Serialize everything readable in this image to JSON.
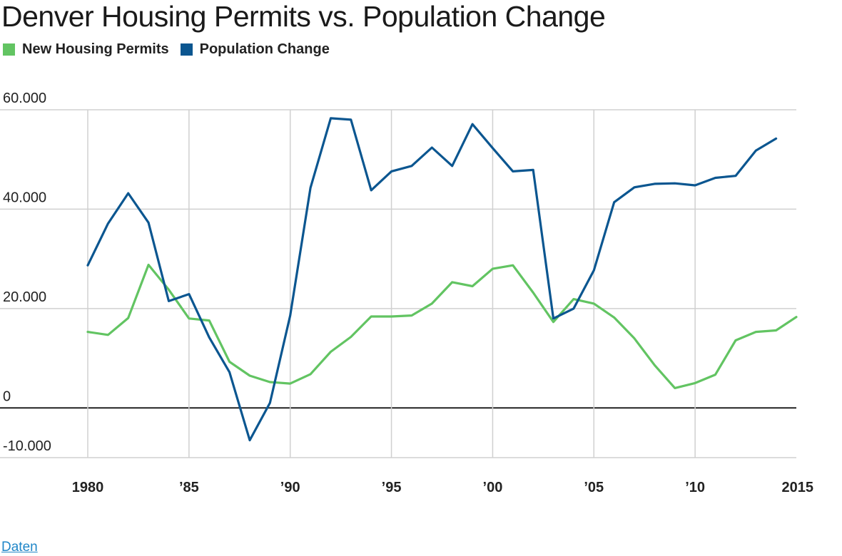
{
  "chart_data": {
    "type": "line",
    "title": "Denver Housing Permits vs. Population Change",
    "xlabel": "",
    "ylabel": "",
    "x": [
      1980,
      1981,
      1982,
      1983,
      1984,
      1985,
      1986,
      1987,
      1988,
      1989,
      1990,
      1991,
      1992,
      1993,
      1994,
      1995,
      1996,
      1997,
      1998,
      1999,
      2000,
      2001,
      2002,
      2003,
      2004,
      2005,
      2006,
      2007,
      2008,
      2009,
      2010,
      2011,
      2012,
      2013,
      2014,
      2015
    ],
    "series": [
      {
        "name": "New Housing Permits",
        "color": "#62c462",
        "values": [
          15300,
          14700,
          18100,
          28800,
          23800,
          18000,
          17600,
          9300,
          6500,
          5200,
          4900,
          6800,
          11300,
          14300,
          18400,
          18400,
          18600,
          21000,
          25300,
          24500,
          28000,
          28700,
          23200,
          17300,
          21900,
          21000,
          18200,
          14000,
          8600,
          4000,
          5000,
          6700,
          13600,
          15300,
          15600,
          18300
        ]
      },
      {
        "name": "Population Change",
        "color": "#0b5690",
        "values": [
          28700,
          37100,
          43200,
          37300,
          21500,
          22900,
          14200,
          7200,
          -6500,
          1000,
          18600,
          44300,
          58300,
          58000,
          43800,
          47600,
          48700,
          52400,
          48700,
          57100,
          52300,
          47600,
          47900,
          18000,
          20000,
          27700,
          41400,
          44400,
          45100,
          45200,
          44800,
          46300,
          46700,
          51800,
          54200,
          null
        ]
      }
    ],
    "ylim": [
      -10000,
      60000
    ],
    "yticks": [
      -10000,
      0,
      20000,
      40000,
      60000
    ],
    "ytick_labels": [
      "-10.000",
      "0",
      "20.000",
      "40.000",
      "60.000"
    ],
    "xticks": [
      1980,
      1985,
      1990,
      1995,
      2000,
      2005,
      2010,
      2015
    ],
    "xtick_labels": [
      "1980",
      "’85",
      "’90",
      "’95",
      "’00",
      "’05",
      "’10",
      "2015"
    ],
    "grid": true,
    "legend_position": "top-left"
  },
  "footer": {
    "source_link": "Daten"
  },
  "colors": {
    "grid": "#d0d0d0",
    "zero_line": "#222222",
    "text": "#222222"
  }
}
